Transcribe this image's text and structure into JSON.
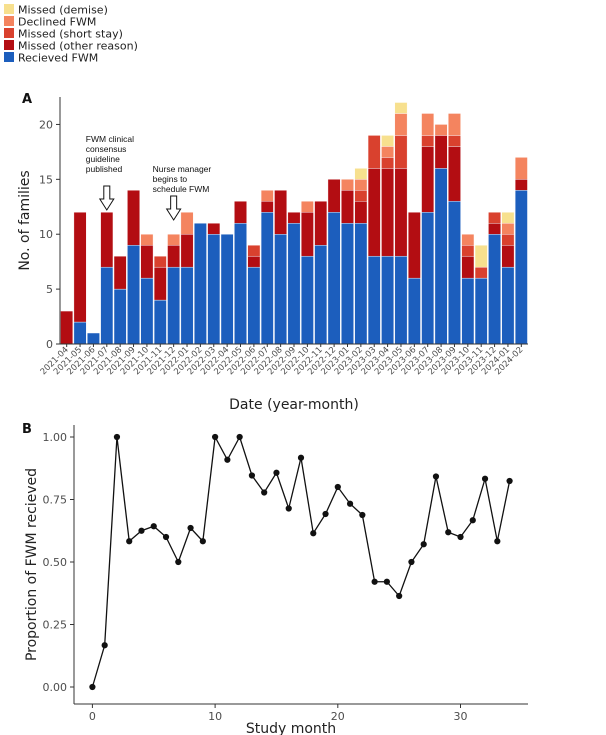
{
  "colors": {
    "missed_demise": "#f7e08e",
    "declined": "#f4845f",
    "missed_short": "#d9412e",
    "missed_other": "#b30d12",
    "received": "#1c5ebd"
  },
  "legend": [
    {
      "label": "Missed (demise)",
      "color": "#f7e08e"
    },
    {
      "label": "Declined FWM",
      "color": "#f4845f"
    },
    {
      "label": "Missed (short stay)",
      "color": "#d9412e"
    },
    {
      "label": "Missed (other reason)",
      "color": "#b30d12"
    },
    {
      "label": "Recieved FWM",
      "color": "#1c5ebd"
    }
  ],
  "chart_data": [
    {
      "panel": "A",
      "type": "bar",
      "stacked": true,
      "xlabel": "Date (year-month)",
      "ylabel": "No. of families",
      "ylim": [
        0,
        22.5
      ],
      "yticks": [
        0,
        5,
        10,
        15,
        20
      ],
      "categories": [
        "2021-04",
        "2021-05",
        "2021-06",
        "2021-07",
        "2021-08",
        "2021-09",
        "2021-10",
        "2021-11",
        "2021-12",
        "2022-01",
        "2022-02",
        "2022-03",
        "2022-04",
        "2022-05",
        "2022-06",
        "2022-07",
        "2022-08",
        "2022-09",
        "2022-10",
        "2022-11",
        "2022-12",
        "2023-01",
        "2023-02",
        "2023-03",
        "2023-04",
        "2023-05",
        "2023-06",
        "2023-07",
        "2023-08",
        "2023-09",
        "2023-10",
        "2023-11",
        "2023-12",
        "2024-01",
        "2024-02"
      ],
      "series": [
        {
          "name": "Recieved FWM",
          "key": "received",
          "values": [
            0,
            2,
            1,
            7,
            5,
            9,
            6,
            4,
            7,
            7,
            11,
            10,
            10,
            11,
            7,
            12,
            10,
            11,
            8,
            9,
            12,
            11,
            11,
            8,
            8,
            8,
            6,
            12,
            16,
            13,
            6,
            6,
            10,
            7,
            14
          ]
        },
        {
          "name": "Missed (other reason)",
          "key": "missed_other",
          "values": [
            3,
            10,
            0,
            5,
            3,
            5,
            3,
            3,
            2,
            3,
            0,
            1,
            0,
            2,
            1,
            1,
            4,
            1,
            4,
            4,
            3,
            3,
            2,
            8,
            8,
            8,
            6,
            6,
            3,
            5,
            2,
            0,
            1,
            2,
            1
          ]
        },
        {
          "name": "Missed (short stay)",
          "key": "missed_short",
          "values": [
            0,
            0,
            0,
            0,
            0,
            0,
            0,
            1,
            0,
            0,
            0,
            0,
            0,
            0,
            1,
            0,
            0,
            0,
            0,
            0,
            0,
            0,
            1,
            3,
            1,
            3,
            0,
            1,
            0,
            1,
            1,
            1,
            1,
            1,
            0
          ]
        },
        {
          "name": "Declined FWM",
          "key": "declined",
          "values": [
            0,
            0,
            0,
            0,
            0,
            0,
            1,
            0,
            1,
            2,
            0,
            0,
            0,
            0,
            0,
            1,
            0,
            0,
            1,
            0,
            0,
            1,
            1,
            0,
            1,
            2,
            0,
            2,
            1,
            2,
            1,
            0,
            0,
            1,
            2
          ]
        },
        {
          "name": "Missed (demise)",
          "key": "missed_demise",
          "values": [
            0,
            0,
            0,
            0,
            0,
            0,
            0,
            0,
            0,
            0,
            0,
            0,
            0,
            0,
            0,
            0,
            0,
            0,
            0,
            0,
            0,
            0,
            1,
            0,
            1,
            1,
            0,
            0,
            0,
            0,
            0,
            2,
            0,
            1,
            0
          ]
        }
      ],
      "annotations": [
        {
          "text_lines": [
            "FWM clinical",
            "consensus",
            "guideline",
            "published"
          ],
          "category": "2021-07"
        },
        {
          "text_lines": [
            "Nurse manager",
            "begins to",
            "schedule FWM"
          ],
          "category": "2021-12"
        }
      ]
    },
    {
      "panel": "B",
      "type": "line",
      "xlabel": "Study month",
      "ylabel": "Proportion of FWM recieved",
      "xlim": [
        -1.5,
        35.5
      ],
      "ylim": [
        0,
        1.0
      ],
      "xticks": [
        0,
        10,
        20,
        30
      ],
      "yticks": [
        0.0,
        0.25,
        0.5,
        0.75,
        1.0
      ],
      "ytick_labels": [
        "0.00",
        "0.25",
        "0.50",
        "0.75",
        "1.00"
      ],
      "x": [
        0,
        1,
        2,
        3,
        4,
        5,
        6,
        7,
        8,
        9,
        10,
        11,
        12,
        13,
        14,
        15,
        16,
        17,
        18,
        19,
        20,
        21,
        22,
        23,
        24,
        25,
        26,
        27,
        28,
        29,
        30,
        31,
        32,
        33,
        34
      ],
      "y": [
        0.0,
        0.167,
        1.0,
        0.583,
        0.625,
        0.643,
        0.6,
        0.5,
        0.636,
        0.583,
        1.0,
        0.909,
        1.0,
        0.846,
        0.778,
        0.857,
        0.714,
        0.917,
        0.615,
        0.692,
        0.8,
        0.733,
        0.688,
        0.421,
        0.421,
        0.364,
        0.5,
        0.571,
        0.842,
        0.619,
        0.6,
        0.667,
        0.833,
        0.583,
        0.824
      ]
    }
  ]
}
